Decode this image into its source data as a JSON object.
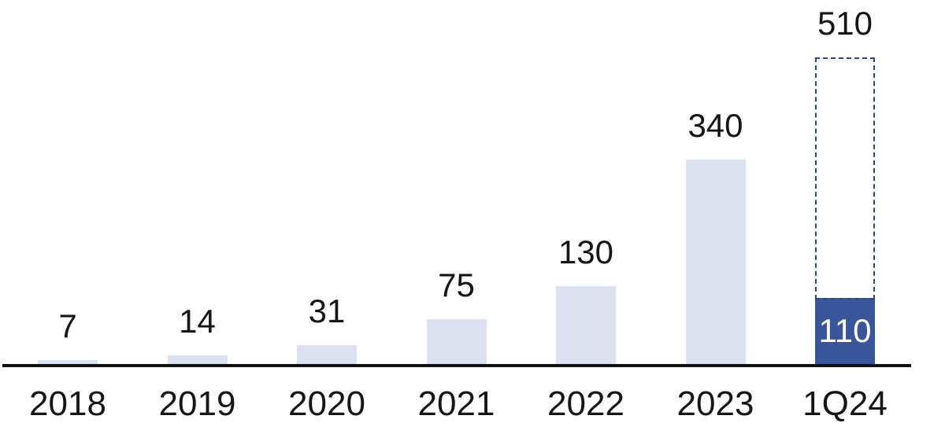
{
  "chart_data": {
    "type": "bar",
    "title": "",
    "xlabel": "",
    "ylabel": "",
    "ylim": [
      0,
      600
    ],
    "grid": false,
    "legend": "none",
    "y_axis_visible": false,
    "categories": [
      "2018",
      "2019",
      "2020",
      "2021",
      "2022",
      "2023",
      "1Q24"
    ],
    "series": [
      {
        "name": "value",
        "values": [
          7,
          14,
          31,
          75,
          130,
          340,
          110
        ]
      }
    ],
    "points": [
      {
        "category": "2018",
        "value": 7,
        "label": "7",
        "variant": "light"
      },
      {
        "category": "2019",
        "value": 14,
        "label": "14",
        "variant": "light"
      },
      {
        "category": "2020",
        "value": 31,
        "label": "31",
        "variant": "light"
      },
      {
        "category": "2021",
        "value": 75,
        "label": "75",
        "variant": "light"
      },
      {
        "category": "2022",
        "value": 130,
        "label": "130",
        "variant": "light"
      },
      {
        "category": "2023",
        "value": 340,
        "label": "340",
        "variant": "light"
      },
      {
        "category": "1Q24",
        "value": 110,
        "label": "110",
        "variant": "dark",
        "label_position": "inside",
        "projected_value": 510,
        "projected_label": "510"
      }
    ],
    "colors": {
      "bar_light": "#dde2f0",
      "bar_dark": "#3a569b",
      "projection_outline": "#2a4690",
      "axis": "#111111",
      "label": "#161616",
      "label_inside": "#ffffff"
    }
  }
}
